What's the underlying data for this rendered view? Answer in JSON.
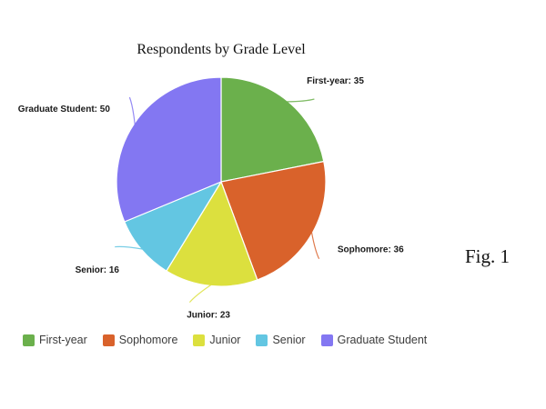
{
  "figure_caption": "Fig. 1",
  "chart_data": {
    "type": "pie",
    "title": "Respondents by Grade Level",
    "total": 160,
    "start_angle_deg": 0,
    "direction": "clockwise",
    "legend_position": "bottom",
    "background_color": "#ffffff",
    "slices": [
      {
        "label": "First-year",
        "value": 35,
        "color": "#6BB04C",
        "callout": "First-year: 35"
      },
      {
        "label": "Sophomore",
        "value": 36,
        "color": "#D9622B",
        "callout": "Sophomore: 36"
      },
      {
        "label": "Junior",
        "value": 23,
        "color": "#DCE03E",
        "callout": "Junior: 23"
      },
      {
        "label": "Senior",
        "value": 16,
        "color": "#63C6E2",
        "callout": "Senior: 16"
      },
      {
        "label": "Graduate Student",
        "value": 50,
        "color": "#8377F2",
        "callout": "Graduate Student: 50"
      }
    ]
  }
}
